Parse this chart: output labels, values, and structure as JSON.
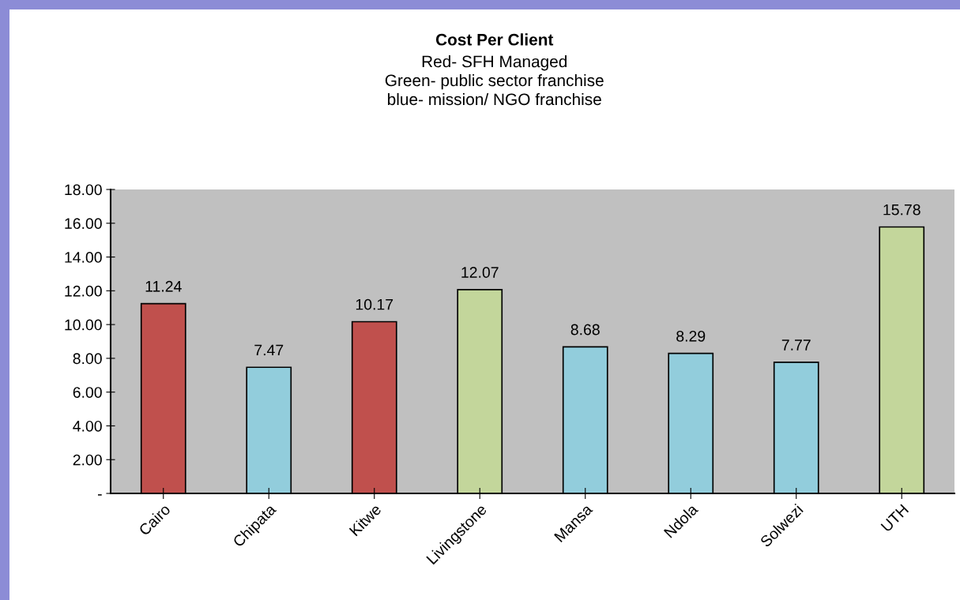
{
  "chart_data": {
    "type": "bar",
    "title": "Cost Per Client",
    "subtitle": "Red- SFH Managed\nGreen- public sector franchise\nblue- mission/ NGO franchise",
    "categories": [
      "Cairo",
      "Chipata",
      "Kitwe",
      "Livingstone",
      "Mansa",
      "Ndola",
      "Solwezi",
      "UTH"
    ],
    "values": [
      11.24,
      7.47,
      10.17,
      12.07,
      8.68,
      8.29,
      7.77,
      15.78
    ],
    "colors": [
      "#c0504d",
      "#92cddc",
      "#c0504d",
      "#c3d69b",
      "#92cddc",
      "#92cddc",
      "#92cddc",
      "#c3d69b"
    ],
    "ylim": [
      0,
      18
    ],
    "yticks": [
      {
        "value": 0,
        "label": "-"
      },
      {
        "value": 2,
        "label": "2.00"
      },
      {
        "value": 4,
        "label": "4.00"
      },
      {
        "value": 6,
        "label": "6.00"
      },
      {
        "value": 8,
        "label": "8.00"
      },
      {
        "value": 10,
        "label": "10.00"
      },
      {
        "value": 12,
        "label": "12.00"
      },
      {
        "value": 14,
        "label": "14.00"
      },
      {
        "value": 16,
        "label": "16.00"
      },
      {
        "value": 18,
        "label": "18.00"
      }
    ],
    "data_labels": true,
    "grid": false,
    "legend": false
  }
}
